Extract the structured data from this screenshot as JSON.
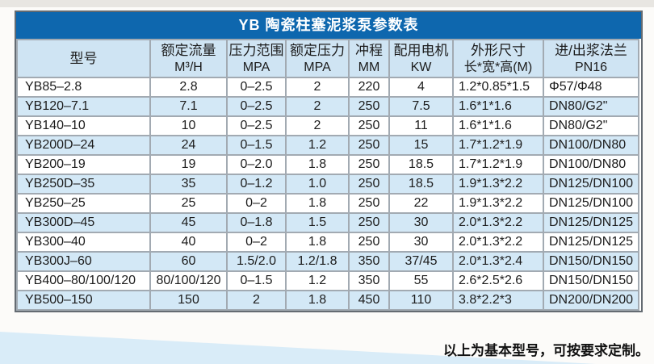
{
  "title": "YB 陶瓷柱塞泥浆泵参数表",
  "footnote": "以上为基本型号，可按要求定制。",
  "colors": {
    "title_bar_blue": "#0e67ae",
    "header_row_blue": "#cfe4f3",
    "stripe_row_blue": "#d3e8f6",
    "wedge_blue": "#d9ecf8",
    "border_gray": "#a2aab2"
  },
  "table": {
    "columns": [
      {
        "label": "型号",
        "unit": ""
      },
      {
        "label": "额定流量",
        "unit": "M³/H"
      },
      {
        "label": "压力范围",
        "unit": "MPA"
      },
      {
        "label": "额定压力",
        "unit": "MPA"
      },
      {
        "label": "冲程",
        "unit": "MM"
      },
      {
        "label": "配用电机",
        "unit": "KW"
      },
      {
        "label": "外形尺寸",
        "unit": "长*宽*高(M)"
      },
      {
        "label": "进/出浆法兰",
        "unit": "PN16"
      }
    ],
    "rows": [
      [
        "YB85–2.8",
        "2.8",
        "0–2.5",
        "2",
        "220",
        "4",
        "1.2*0.85*1.5",
        "Φ57/Φ48"
      ],
      [
        "YB120–7.1",
        "7.1",
        "0–2.5",
        "2",
        "250",
        "7.5",
        "1.6*1*1.6",
        "DN80/G2\""
      ],
      [
        "YB140–10",
        "10",
        "0–2.5",
        "2",
        "250",
        "11",
        "1.6*1*1.6",
        "DN80/G2\""
      ],
      [
        "YB200D–24",
        "24",
        "0–1.5",
        "1.2",
        "250",
        "15",
        "1.7*1.2*1.9",
        "DN100/DN80"
      ],
      [
        "YB200–19",
        "19",
        "0–2.0",
        "1.8",
        "250",
        "18.5",
        "1.7*1.2*1.9",
        "DN100/DN80"
      ],
      [
        "YB250D–35",
        "35",
        "0–1.2",
        "1.0",
        "250",
        "18.5",
        "1.9*1.3*2.2",
        "DN125/DN100"
      ],
      [
        "YB250–25",
        "25",
        "0–2",
        "1.8",
        "250",
        "22",
        "1.9*1.3*2.2",
        "DN125/DN100"
      ],
      [
        "YB300D–45",
        "45",
        "0–1.8",
        "1.5",
        "250",
        "30",
        "2.0*1.3*2.2",
        "DN125/DN125"
      ],
      [
        "YB300–40",
        "40",
        "0–2",
        "1.8",
        "250",
        "30",
        "2.0*1.3*2.2",
        "DN125/DN125"
      ],
      [
        "YB300J–60",
        "60",
        "1.5/2.0",
        "1.2/1.8",
        "350",
        "37/45",
        "2.0*1.3*2.4",
        "DN150/DN150"
      ],
      [
        "YB400–80/100/120",
        "80/100/120",
        "0–1.5",
        "1.2",
        "350",
        "55",
        "2.6*2.5*2.6",
        "DN150/DN150"
      ],
      [
        "YB500–150",
        "150",
        "2",
        "1.8",
        "450",
        "110",
        "3.8*2.2*3",
        "DN200/DN200"
      ]
    ]
  }
}
